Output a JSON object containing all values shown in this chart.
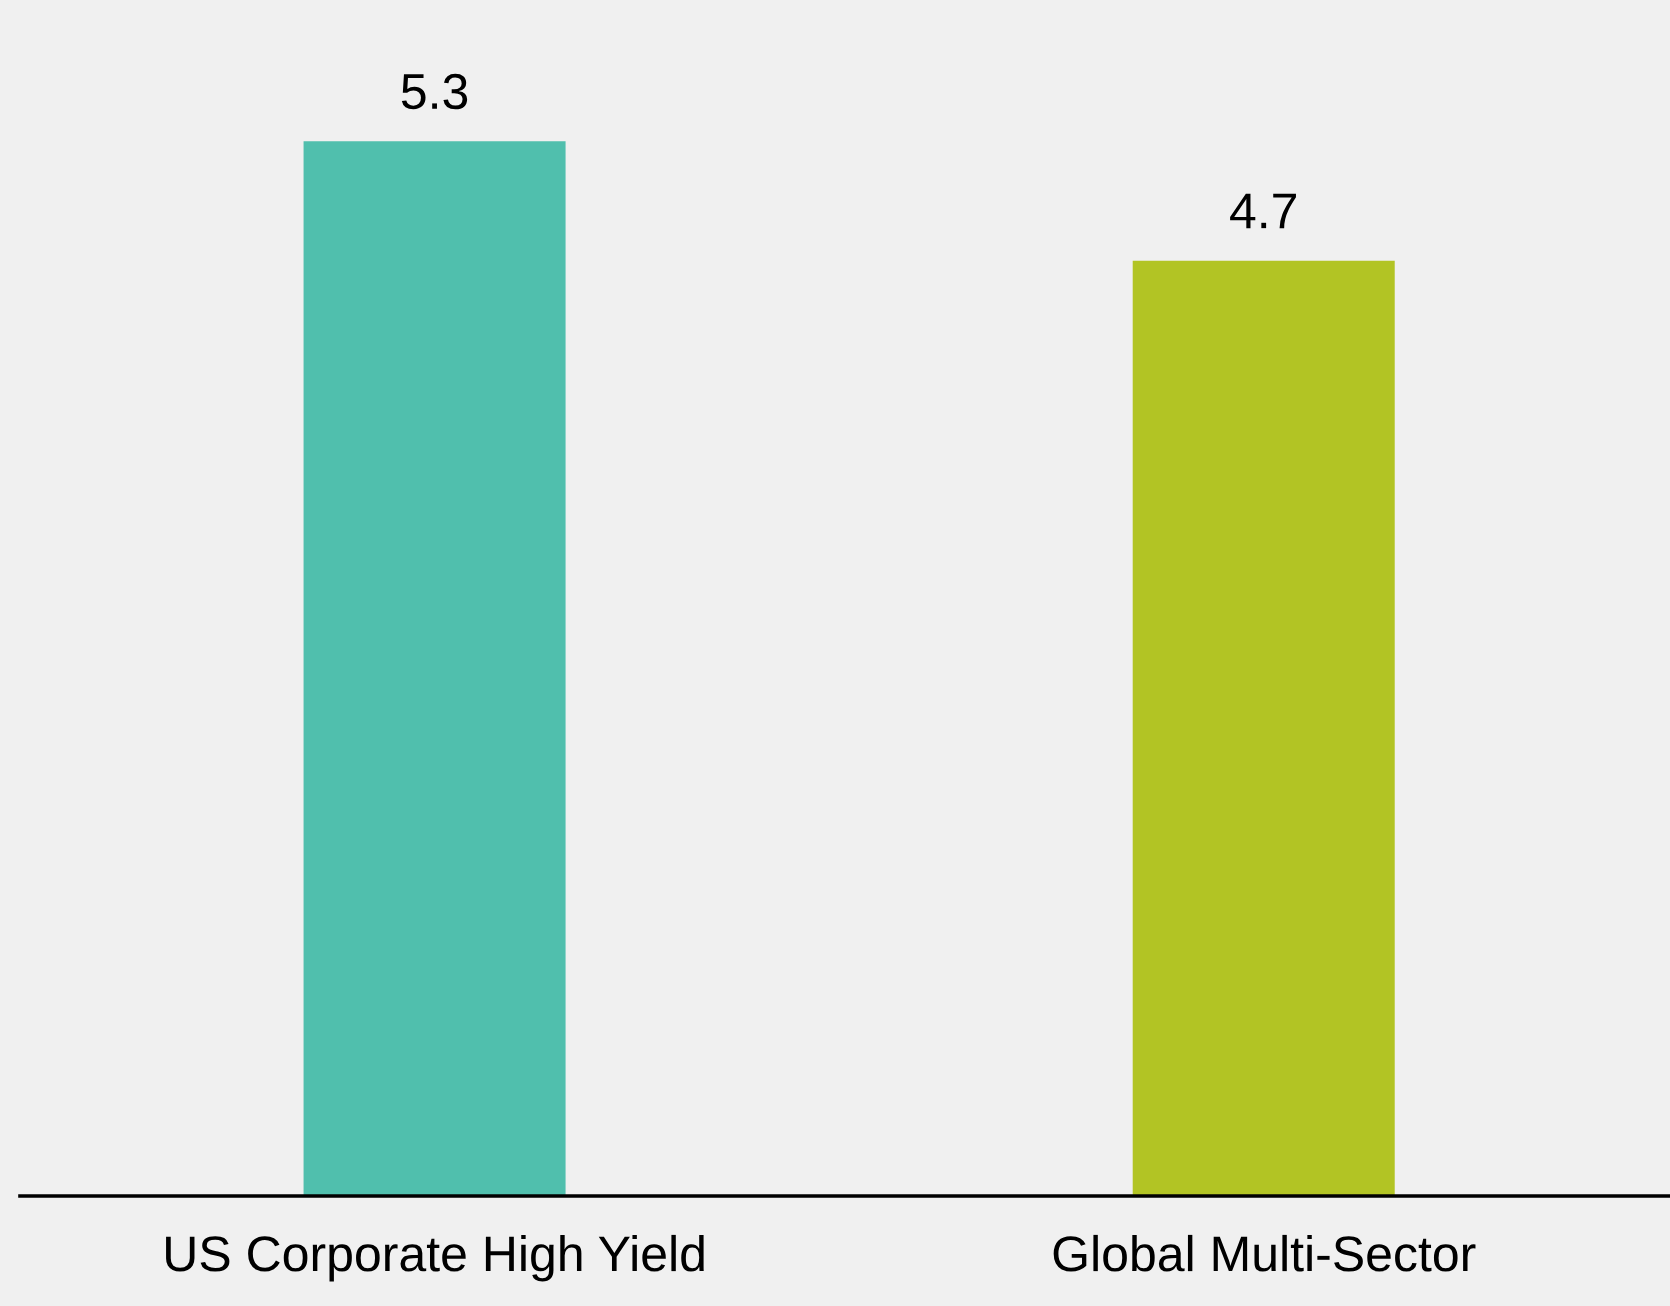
{
  "chart_data": {
    "type": "bar",
    "categories": [
      "US Corporate High Yield",
      "Global Multi-Sector"
    ],
    "values": [
      5.3,
      4.7
    ],
    "colors": [
      "#50bfad",
      "#b2c424"
    ],
    "data_labels": true,
    "grid": false,
    "legend": false
  }
}
